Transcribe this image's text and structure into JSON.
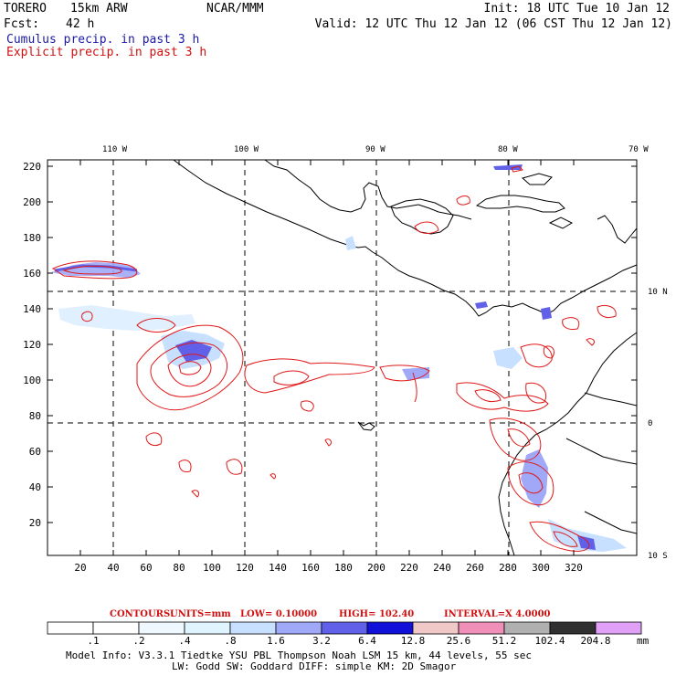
{
  "header": {
    "model": "TORERO",
    "resolution": "15km ARW",
    "org": "NCAR/MMM",
    "init": "Init: 18 UTC Tue 10 Jan 12",
    "fcst_label": "Fcst:",
    "fcst_hours": "42 h",
    "valid": "Valid: 12 UTC Thu 12 Jan 12 (06 CST Thu 12 Jan 12)",
    "field1": "Cumulus precip. in past 3 h",
    "field2": "Explicit precip. in past 3 h"
  },
  "map": {
    "lon_labels": [
      "110 W",
      "100 W",
      "90 W",
      "80 W",
      "70 W"
    ],
    "lat_labels": [
      "10 N",
      "0",
      "10 S"
    ],
    "x_ticks": [
      "20",
      "40",
      "60",
      "80",
      "100",
      "120",
      "140",
      "160",
      "180",
      "200",
      "220",
      "240",
      "260",
      "280",
      "300",
      "320"
    ],
    "y_ticks": [
      "20",
      "40",
      "60",
      "80",
      "100",
      "120",
      "140",
      "160",
      "180",
      "200",
      "220"
    ]
  },
  "contours": {
    "label": "CONTOURS:",
    "units": "UNITS=mm",
    "low": "LOW= 0.10000",
    "high": "HIGH= 102.40",
    "interval": "INTERVAL=X 4.0000"
  },
  "colorbar": {
    "labels": [
      ".1",
      ".2",
      ".4",
      ".8",
      "1.6",
      "3.2",
      "6.4",
      "12.8",
      "25.6",
      "51.2",
      "102.4",
      "204.8"
    ],
    "unit": "mm",
    "colors": [
      "#ffffff",
      "#ffffff",
      "#f0f8ff",
      "#e0f4ff",
      "#c8e0ff",
      "#a0a8f8",
      "#6060e8",
      "#1010d8",
      "#f0c8c8",
      "#f090b8",
      "#b0b0b0",
      "#303030",
      "#e0a0f8"
    ]
  },
  "footer": {
    "line1": "Model Info: V3.3.1    Tiedtke YSU PBL  Thompson    Noah LSM  15 km,  44 levels,  55 sec",
    "line2": "LW: Godd SW: Goddard DIFF: simple KM: 2D Smagor"
  }
}
